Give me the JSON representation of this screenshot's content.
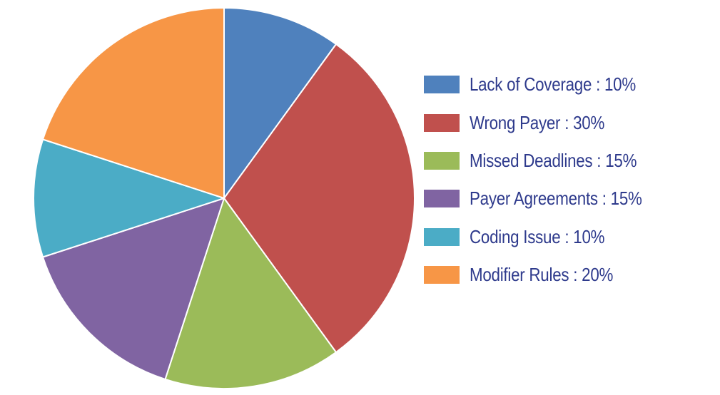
{
  "chart_data": {
    "type": "pie",
    "start_angle_deg": 0,
    "direction": "clockwise",
    "slices": [
      {
        "label": "Lack of Coverage : 10%",
        "category": "Lack of Coverage",
        "value": 10,
        "color": "#4f81bd"
      },
      {
        "label": "Wrong Payer : 30%",
        "category": "Wrong Payer",
        "value": 30,
        "color": "#c0504d"
      },
      {
        "label": "Missed Deadlines : 15%",
        "category": "Missed Deadlines",
        "value": 15,
        "color": "#9bbb59"
      },
      {
        "label": "Payer Agreements : 15%",
        "category": "Payer Agreements",
        "value": 15,
        "color": "#8064a2"
      },
      {
        "label": "Coding Issue : 10%",
        "category": "Coding Issue",
        "value": 10,
        "color": "#4bacc6"
      },
      {
        "label": "Modifier Rules : 20%",
        "category": "Modifier Rules",
        "value": 20,
        "color": "#f79646"
      }
    ],
    "legend_position": "right",
    "text_color": "#2e3a8c"
  }
}
